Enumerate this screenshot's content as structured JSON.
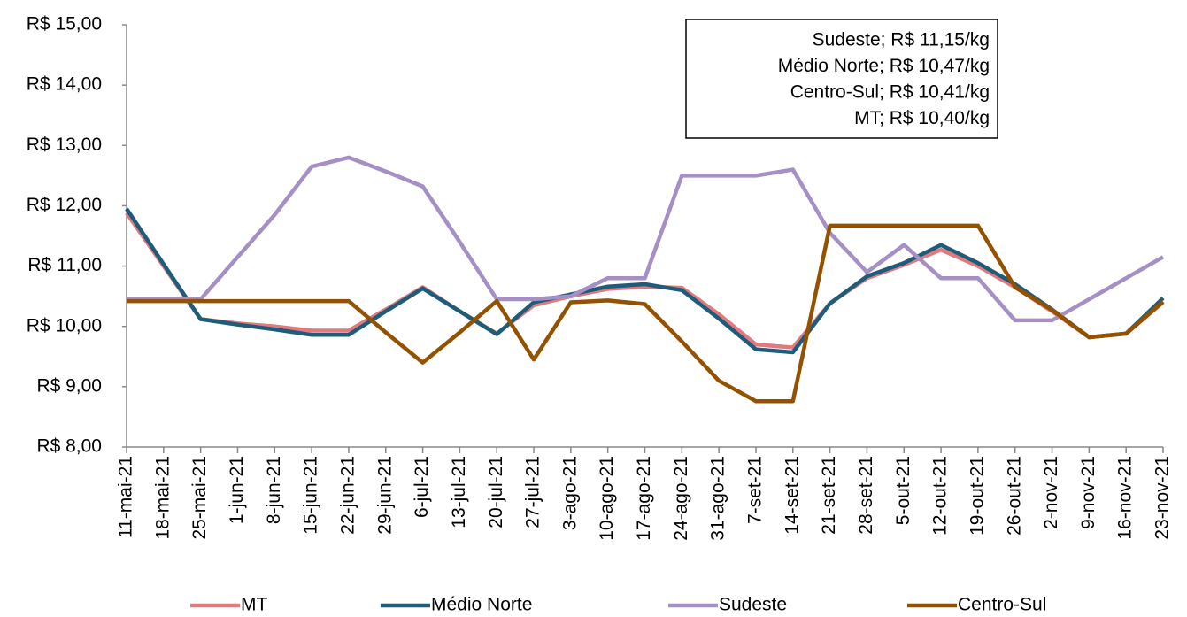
{
  "chart_data": {
    "type": "line",
    "categories": [
      "11-mai-21",
      "18-mai-21",
      "25-mai-21",
      "1-jun-21",
      "8-jun-21",
      "15-jun-21",
      "22-jun-21",
      "29-jun-21",
      "6-jul-21",
      "13-jul-21",
      "20-jul-21",
      "27-jul-21",
      "3-ago-21",
      "10-ago-21",
      "17-ago-21",
      "24-ago-21",
      "31-ago-21",
      "7-set-21",
      "14-set-21",
      "21-set-21",
      "28-set-21",
      "5-out-21",
      "12-out-21",
      "19-out-21",
      "26-out-21",
      "2-nov-21",
      "9-nov-21",
      "16-nov-21",
      "23-nov-21"
    ],
    "series": [
      {
        "name": "MT",
        "color": "#e07a7f",
        "values": [
          11.88,
          11.0,
          10.12,
          10.05,
          10.0,
          9.93,
          9.93,
          10.28,
          10.65,
          10.25,
          9.88,
          10.35,
          10.5,
          10.62,
          10.66,
          10.64,
          10.2,
          9.7,
          9.65,
          10.38,
          10.8,
          11.02,
          11.27,
          11.0,
          10.65,
          10.25,
          9.82,
          9.88,
          10.4
        ]
      },
      {
        "name": "Médio Norte",
        "color": "#1f5c7a",
        "values": [
          11.95,
          11.03,
          10.12,
          10.03,
          9.95,
          9.86,
          9.86,
          10.25,
          10.63,
          10.25,
          9.87,
          10.4,
          10.53,
          10.66,
          10.7,
          10.6,
          10.13,
          9.62,
          9.57,
          10.38,
          10.83,
          11.05,
          11.35,
          11.05,
          10.7,
          10.28,
          9.82,
          9.88,
          10.47
        ]
      },
      {
        "name": "Sudeste",
        "color": "#a58fc4",
        "values": [
          10.45,
          10.45,
          10.45,
          11.15,
          11.85,
          12.65,
          12.8,
          12.57,
          12.32,
          11.4,
          10.45,
          10.45,
          10.5,
          10.8,
          10.8,
          12.5,
          12.5,
          12.5,
          12.6,
          11.55,
          10.9,
          11.35,
          10.8,
          10.8,
          10.1,
          10.1,
          10.45,
          10.8,
          11.15
        ]
      },
      {
        "name": "Centro-Sul",
        "color": "#945200",
        "values": [
          10.42,
          10.42,
          10.42,
          10.42,
          10.42,
          10.42,
          10.42,
          9.9,
          9.4,
          9.9,
          10.42,
          9.45,
          10.4,
          10.43,
          10.37,
          9.75,
          9.1,
          8.76,
          8.76,
          11.67,
          11.67,
          11.67,
          11.67,
          11.67,
          10.65,
          10.27,
          9.82,
          9.88,
          10.41
        ]
      }
    ],
    "ylim": [
      8,
      15
    ],
    "yticks": [
      {
        "value": 8,
        "label": "R$ 8,00"
      },
      {
        "value": 9,
        "label": "R$ 9,00"
      },
      {
        "value": 10,
        "label": "R$ 10,00"
      },
      {
        "value": 11,
        "label": "R$ 11,00"
      },
      {
        "value": 12,
        "label": "R$ 12,00"
      },
      {
        "value": 13,
        "label": "R$ 13,00"
      },
      {
        "value": 14,
        "label": "R$ 14,00"
      },
      {
        "value": 15,
        "label": "R$ 15,00"
      }
    ],
    "annotations": [
      "Sudeste; R$ 11,15/kg",
      "Médio Norte; R$ 10,47/kg",
      "Centro-Sul; R$ 10,41/kg",
      "MT; R$ 10,40/kg"
    ],
    "grid": false
  }
}
